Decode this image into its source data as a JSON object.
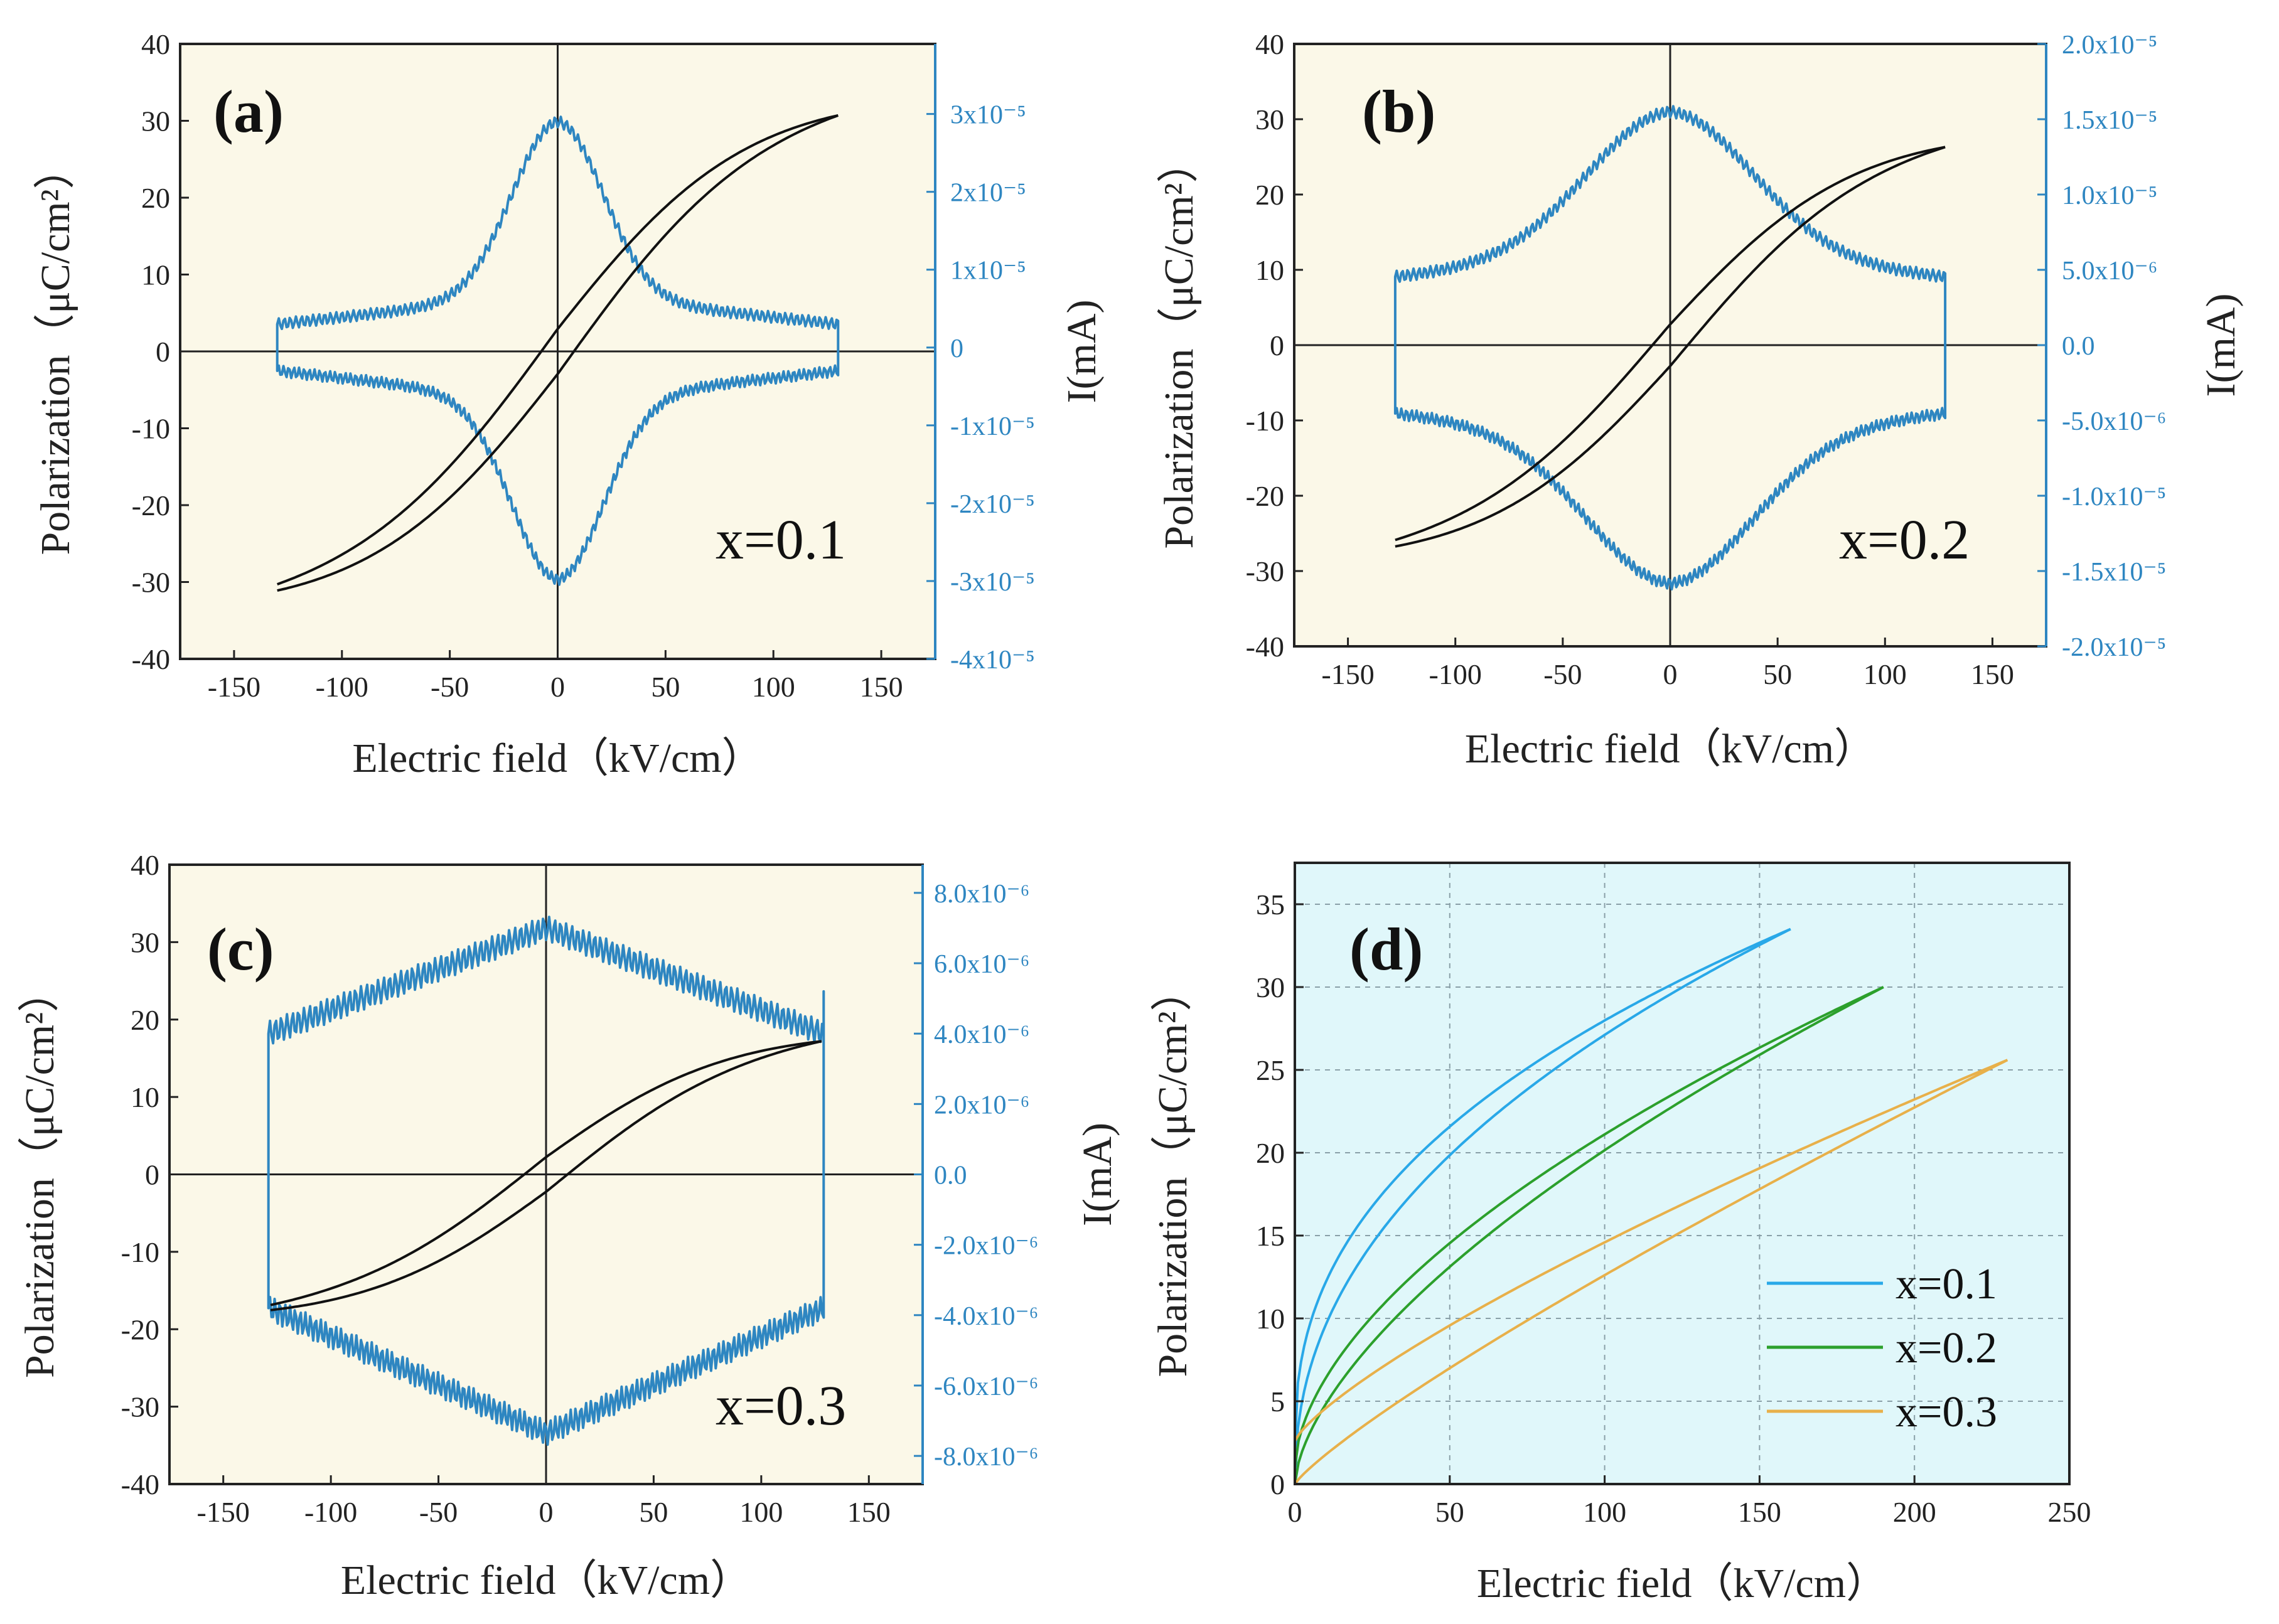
{
  "figure": {
    "x_axis_title": "Electric field（kV/cm）",
    "y_axis_title": "Polarization（μC/cm²）",
    "y2_axis_title": "I(mA)"
  },
  "colors": {
    "pe_loop": "#111111",
    "current": "#2e86c1",
    "frame": "#222222",
    "bg_abc": "#fbf8e8",
    "bg_d": "#e0f7fa",
    "legend_x01": "#29a8e8",
    "legend_x02": "#2ca02c",
    "legend_x03": "#e8b04a"
  },
  "chart_data": [
    {
      "id": "a",
      "type": "line",
      "panel_label": "(a)",
      "series_label": "x=0.1",
      "xlabel": "Electric field（kV/cm）",
      "ylabel": "Polarization（μC/cm²）",
      "y2label": "I(mA)",
      "xlim": [
        -175,
        175
      ],
      "ylim": [
        -40,
        40
      ],
      "xticks": [
        "-150",
        "-100",
        "-50",
        "0",
        "50",
        "100",
        "150"
      ],
      "xtick_values": [
        -150,
        -100,
        -50,
        0,
        50,
        100,
        150
      ],
      "yticks": [
        "-40",
        "-30",
        "-20",
        "-10",
        "0",
        "10",
        "20",
        "30",
        "40"
      ],
      "ytick_values": [
        -40,
        -30,
        -20,
        -10,
        0,
        10,
        20,
        30,
        40
      ],
      "y2ticks": [
        "-4x10⁻⁵",
        "-3x10⁻⁵",
        "-2x10⁻⁵",
        "-1x10⁻⁵",
        "0",
        "1x10⁻⁵",
        "2x10⁻⁵",
        "3x10⁻⁵"
      ],
      "y2tick_values": [
        -4e-05,
        -3e-05,
        -2e-05,
        -1e-05,
        0,
        1e-05,
        2e-05,
        3e-05
      ],
      "y2lim": [
        -4e-05,
        3.9e-05
      ],
      "loop": {
        "Emax": 130,
        "Pmax": 30.7,
        "Pr": 2.0,
        "Ec": 2.5
      },
      "current": {
        "Emax": 130,
        "Ipeak": 2.9e-05,
        "Iend": 3e-06,
        "base": 3.5e-06,
        "w": 30,
        "Ineg_end": -3e-06
      }
    },
    {
      "id": "b",
      "type": "line",
      "panel_label": "(b)",
      "series_label": "x=0.2",
      "xlabel": "Electric field（kV/cm）",
      "ylabel": "Polarization（μC/cm²）",
      "y2label": "I(mA)",
      "xlim": [
        -175,
        175
      ],
      "ylim": [
        -40,
        40
      ],
      "xticks": [
        "-150",
        "-100",
        "-50",
        "0",
        "50",
        "100",
        "150"
      ],
      "xtick_values": [
        -150,
        -100,
        -50,
        0,
        50,
        100,
        150
      ],
      "yticks": [
        "-40",
        "-30",
        "-20",
        "-10",
        "0",
        "10",
        "20",
        "30",
        "40"
      ],
      "ytick_values": [
        -40,
        -30,
        -20,
        -10,
        0,
        10,
        20,
        30,
        40
      ],
      "y2ticks": [
        "-2.0x10⁻⁵",
        "-1.5x10⁻⁵",
        "-1.0x10⁻⁵",
        "-5.0x10⁻⁶",
        "0.0",
        "5.0x10⁻⁶",
        "1.0x10⁻⁵",
        "1.5x10⁻⁵",
        "2.0x10⁻⁵"
      ],
      "y2tick_values": [
        -2e-05,
        -1.5e-05,
        -1e-05,
        -5e-06,
        0,
        5e-06,
        1e-05,
        1.5e-05,
        2e-05
      ],
      "y2lim": [
        -2e-05,
        2e-05
      ],
      "loop": {
        "Emax": 128,
        "Pmax": 26.3,
        "Pr": 1.8,
        "Ec": 3.0
      },
      "current": {
        "Emax": 128,
        "Ipeak": 1.55e-05,
        "Iend": 4.5e-06,
        "base": 4.5e-06,
        "w": 55,
        "Ineg_end": -4.5e-06
      }
    },
    {
      "id": "c",
      "type": "line",
      "panel_label": "(c)",
      "series_label": "x=0.3",
      "xlabel": "Electric field（kV/cm）",
      "ylabel": "Polarization（μC/cm²）",
      "y2label": "I(mA)",
      "xlim": [
        -175,
        175
      ],
      "ylim": [
        -40,
        40
      ],
      "xticks": [
        "-150",
        "-100",
        "-50",
        "0",
        "50",
        "100",
        "150"
      ],
      "xtick_values": [
        -150,
        -100,
        -50,
        0,
        50,
        100,
        150
      ],
      "yticks": [
        "-40",
        "-30",
        "-20",
        "-10",
        "0",
        "10",
        "20",
        "30",
        "40"
      ],
      "ytick_values": [
        -40,
        -30,
        -20,
        -10,
        0,
        10,
        20,
        30,
        40
      ],
      "y2ticks": [
        "-8.0x10⁻⁶",
        "-6.0x10⁻⁶",
        "-4.0x10⁻⁶",
        "-2.0x10⁻⁶",
        "0.0",
        "2.0x10⁻⁶",
        "4.0x10⁻⁶",
        "6.0x10⁻⁶",
        "8.0x10⁻⁶"
      ],
      "y2tick_values": [
        -8e-06,
        -6e-06,
        -4e-06,
        -2e-06,
        0,
        2e-06,
        4e-06,
        6e-06,
        8e-06
      ],
      "y2lim": [
        -8.8e-06,
        8.8e-06
      ],
      "loop": {
        "Emax": 128,
        "Pmax": 17.2,
        "Pr": 1.5,
        "Ec": 3.5
      },
      "current": {
        "Emax": 129,
        "Ipeak": 7e-06,
        "Iend": 4e-06,
        "base": 0,
        "w": 0,
        "Ineg_end": -3.8e-06,
        "linear": true,
        "spike": 5.2e-06
      }
    },
    {
      "id": "d",
      "type": "line",
      "panel_label": "(d)",
      "xlabel": "Electric field（kV/cm）",
      "ylabel": "Polarization（μC/cm²）",
      "xlim": [
        0,
        250
      ],
      "ylim": [
        0,
        37.5
      ],
      "xticks": [
        "0",
        "50",
        "100",
        "150",
        "200",
        "250"
      ],
      "xtick_values": [
        0,
        50,
        100,
        150,
        200,
        250
      ],
      "yticks": [
        "0",
        "5",
        "10",
        "15",
        "20",
        "25",
        "30",
        "35"
      ],
      "ytick_values": [
        0,
        5,
        10,
        15,
        20,
        25,
        30,
        35
      ],
      "grid": true,
      "legend_position": "lower-right",
      "series": [
        {
          "name": "x=0.1",
          "Emax": 160,
          "Pmax": 33.5,
          "Pr": 2.3,
          "k": 0.45
        },
        {
          "name": "x=0.2",
          "Emax": 190,
          "Pmax": 30.0,
          "Pr": 1.0,
          "k": 0.62
        },
        {
          "name": "x=0.3",
          "Emax": 230,
          "Pmax": 25.6,
          "Pr": 2.6,
          "k": 0.85
        }
      ]
    }
  ]
}
